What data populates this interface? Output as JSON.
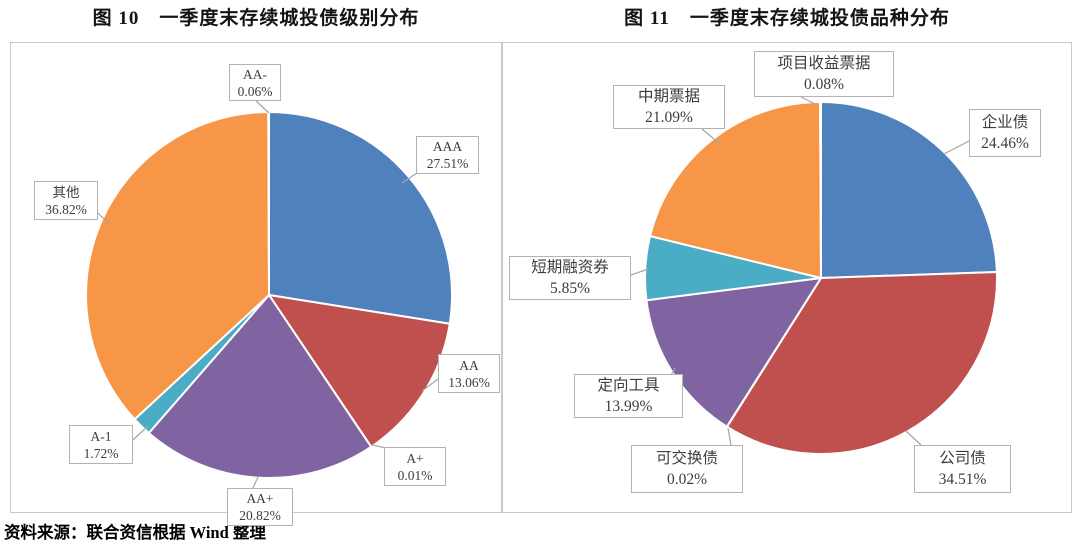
{
  "figures": [
    {
      "title": "图 10　一季度末存续城投债级别分布"
    },
    {
      "title": "图 11　一季度末存续城投债品种分布"
    }
  ],
  "source_note": "资料来源：联合资信根据 Wind 整理",
  "chart_data": [
    {
      "type": "pie",
      "title": "图 10 一季度末存续城投债级别分布",
      "categories": [
        "AAA",
        "AA",
        "A+",
        "AA+",
        "A-1",
        "其他",
        "AA-"
      ],
      "values": [
        27.51,
        13.06,
        0.01,
        20.82,
        1.72,
        36.82,
        0.06
      ],
      "pct_labels": [
        "27.51%",
        "13.06%",
        "0.01%",
        "20.82%",
        "1.72%",
        "36.82%",
        "0.06%"
      ],
      "colors": [
        "#4F81BD",
        "#C0504D",
        "#9BBB59",
        "#8064A2",
        "#4BACC6",
        "#F79646",
        "#2C4D75"
      ],
      "start_angle_deg": 0,
      "direction": "clockwise",
      "legend": "none",
      "label_style": "callout boxes: category name + percent"
    },
    {
      "type": "pie",
      "title": "图 11 一季度末存续城投债品种分布",
      "categories": [
        "企业债",
        "公司债",
        "可交换债",
        "定向工具",
        "短期融资券",
        "中期票据",
        "项目收益票据"
      ],
      "values": [
        24.46,
        34.51,
        0.02,
        13.99,
        5.85,
        21.09,
        0.08
      ],
      "pct_labels": [
        "24.46%",
        "34.51%",
        "0.02%",
        "13.99%",
        "5.85%",
        "21.09%",
        "0.08%"
      ],
      "colors": [
        "#4F81BD",
        "#C0504D",
        "#9BBB59",
        "#8064A2",
        "#4BACC6",
        "#F79646",
        "#2C4D75"
      ],
      "start_angle_deg": 0,
      "direction": "clockwise",
      "legend": "none",
      "label_style": "callout boxes: category name + percent"
    }
  ]
}
